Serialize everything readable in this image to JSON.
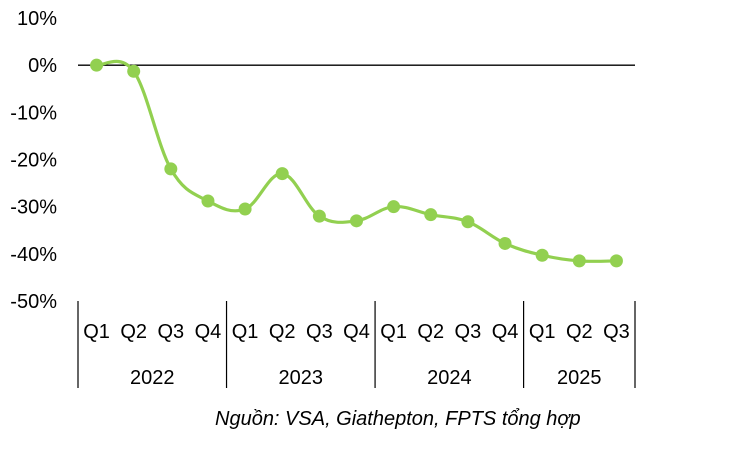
{
  "chart_data": {
    "type": "line",
    "title": "",
    "xlabel": "",
    "ylabel": "",
    "ylim": [
      -50,
      10
    ],
    "yticks": [
      10,
      0,
      -10,
      -20,
      -30,
      -40,
      -50
    ],
    "ytick_labels": [
      "10%",
      "0%",
      "-10%",
      "-20%",
      "-30%",
      "-40%",
      "-50%"
    ],
    "grid": false,
    "legend": "none",
    "categories": [
      "Q1",
      "Q2",
      "Q3",
      "Q4",
      "Q1",
      "Q2",
      "Q3",
      "Q4",
      "Q1",
      "Q2",
      "Q3",
      "Q4",
      "Q1",
      "Q2",
      "Q3"
    ],
    "year_groups": [
      {
        "year": "2022",
        "count": 4
      },
      {
        "year": "2023",
        "count": 4
      },
      {
        "year": "2024",
        "count": 4
      },
      {
        "year": "2025",
        "count": 3
      }
    ],
    "series": [
      {
        "name": "",
        "color": "#92D050",
        "smooth": true,
        "values": [
          0.0,
          -1.3,
          -22.0,
          -28.8,
          -30.5,
          -23.0,
          -32.0,
          -33.0,
          -30.0,
          -31.7,
          -33.2,
          -37.8,
          -40.3,
          -41.5,
          -41.5
        ]
      }
    ]
  },
  "source": "Nguồn: VSA, Giathepton, FPTS tổng hợp"
}
